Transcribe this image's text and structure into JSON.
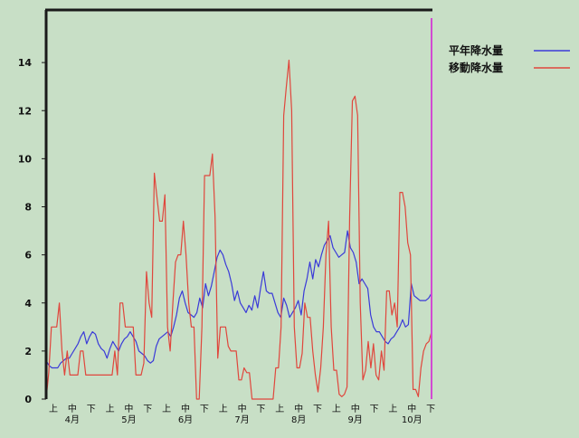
{
  "chart_data": {
    "type": "line",
    "ylim": [
      0,
      16
    ],
    "yticks": [
      0,
      2,
      4,
      6,
      8,
      10,
      12,
      14
    ],
    "x_sub_labels": [
      "上",
      "中",
      "下",
      "上",
      "中",
      "下",
      "上",
      "中",
      "下",
      "上",
      "中",
      "下",
      "上",
      "中",
      "下",
      "上",
      "中",
      "下",
      "上",
      "中",
      "下"
    ],
    "x_month_labels": [
      "4月",
      "5月",
      "6月",
      "7月",
      "8月",
      "9月",
      "10月"
    ],
    "colors": {
      "normal": "#3a3ad8",
      "moving": "#e0463c",
      "marker": "#d24ad2",
      "axis": "#1a1a1a"
    },
    "series": [
      {
        "name": "平年降水量",
        "color": "#3a3ad8",
        "values": [
          1.6,
          1.4,
          1.3,
          1.3,
          1.3,
          1.5,
          1.6,
          1.7,
          1.7,
          1.9,
          2.1,
          2.3,
          2.6,
          2.8,
          2.3,
          2.6,
          2.8,
          2.7,
          2.3,
          2.1,
          2.0,
          1.7,
          2.1,
          2.4,
          2.2,
          2.0,
          2.3,
          2.5,
          2.6,
          2.8,
          2.6,
          2.4,
          2.0,
          1.9,
          1.8,
          1.6,
          1.5,
          1.6,
          2.2,
          2.5,
          2.6,
          2.7,
          2.8,
          2.6,
          3.0,
          3.5,
          4.2,
          4.5,
          4.0,
          3.6,
          3.5,
          3.4,
          3.6,
          4.2,
          3.8,
          4.8,
          4.3,
          4.7,
          5.3,
          5.9,
          6.2,
          6.0,
          5.6,
          5.3,
          4.8,
          4.1,
          4.5,
          4.0,
          3.8,
          3.6,
          3.9,
          3.7,
          4.3,
          3.8,
          4.6,
          5.3,
          4.5,
          4.4,
          4.4,
          4.0,
          3.6,
          3.4,
          4.2,
          3.9,
          3.4,
          3.6,
          3.8,
          4.1,
          3.5,
          4.5,
          5.0,
          5.7,
          5.0,
          5.8,
          5.5,
          6.0,
          6.4,
          6.6,
          6.8,
          6.3,
          6.1,
          5.9,
          6.0,
          6.1,
          7.0,
          6.3,
          6.1,
          5.7,
          4.8,
          5.0,
          4.8,
          4.6,
          3.5,
          3.0,
          2.8,
          2.8,
          2.6,
          2.4,
          2.3,
          2.5,
          2.6,
          2.8,
          3.0,
          3.3,
          3.0,
          3.1,
          4.8,
          4.3,
          4.2,
          4.1,
          4.1,
          4.1,
          4.2,
          4.4
        ]
      },
      {
        "name": "移動降水量",
        "color": "#e0463c",
        "values": [
          0,
          1.1,
          3.0,
          3.0,
          3.0,
          4.0,
          2.0,
          1.0,
          2.0,
          1.0,
          1.0,
          1.0,
          1.0,
          2.0,
          2.0,
          1.0,
          1.0,
          1.0,
          1.0,
          1.0,
          1.0,
          1.0,
          1.0,
          1.0,
          1.0,
          1.0,
          2.0,
          1.0,
          4.0,
          4.0,
          3.0,
          3.0,
          3.0,
          3.0,
          1.0,
          1.0,
          1.0,
          1.5,
          5.3,
          4.0,
          3.4,
          9.4,
          8.4,
          7.4,
          7.4,
          8.5,
          3.0,
          2.0,
          4.0,
          5.7,
          6.0,
          6.0,
          7.4,
          6.0,
          4.0,
          3.0,
          3.0,
          0,
          0,
          3.0,
          9.3,
          9.3,
          9.3,
          10.2,
          7.6,
          1.7,
          3.0,
          3.0,
          3.0,
          2.2,
          2.0,
          2.0,
          2.0,
          0.8,
          0.8,
          1.3,
          1.1,
          1.1,
          0,
          0,
          0,
          0,
          0,
          0,
          0,
          0,
          0,
          1.3,
          1.3,
          3.0,
          11.8,
          13.0,
          14.1,
          12.0,
          3.0,
          1.3,
          1.3,
          1.9,
          4.0,
          3.4,
          3.4,
          2.0,
          1.0,
          0.3,
          1.3,
          3.0,
          6.0,
          7.4,
          3.0,
          1.2,
          1.2,
          0.2,
          0.1,
          0.2,
          0.5,
          7.6,
          12.4,
          12.6,
          11.8,
          4.0,
          0.8,
          1.2,
          2.4,
          1.3,
          2.3,
          1.0,
          0.8,
          2.0,
          1.2,
          4.5,
          4.5,
          3.5,
          4.0,
          3.0,
          8.6,
          8.6,
          8.0,
          6.5,
          6.0,
          0.4,
          0.4,
          0.1,
          1.3,
          2.0,
          2.3,
          2.4,
          2.8
        ]
      }
    ],
    "legend_position": "top-right",
    "grid": false
  }
}
